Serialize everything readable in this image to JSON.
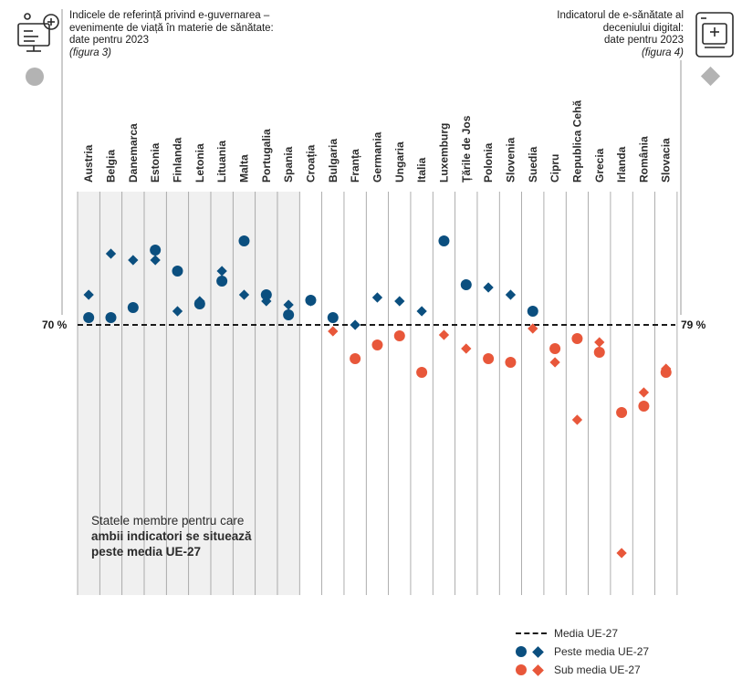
{
  "header_left": {
    "line1": "Indicele de referință privind e-guvernarea –",
    "line2": "evenimente de viață în materie de sănătate:",
    "line3": "date pentru 2023",
    "ref": "(figura 3)",
    "icon": "computer-health-icon"
  },
  "header_right": {
    "line1": "Indicatorul de e-sănătate al",
    "line2": "deceniului digital:",
    "line3": "date pentru 2023",
    "ref": "(figura 4)",
    "icon": "tablet-health-icon"
  },
  "note": {
    "line1": "Statele membre pentru care",
    "bold1": "ambii indicatori se situează",
    "bold2": "peste media UE-27"
  },
  "legend": {
    "mean": "Media UE-27",
    "above": "Peste media UE-27",
    "below": "Sub media UE-27"
  },
  "colors": {
    "above": "#0b4f7f",
    "below": "#e8573a",
    "below_dark": "#d94424",
    "shade": "#f0f0f0",
    "grey_marker": "#b3b3b3",
    "grid": "#9a9a9a"
  },
  "chart_data": {
    "type": "scatter",
    "title": "",
    "eu_mean_left_label": "70 %",
    "eu_mean_right_label": "79 %",
    "scale_note": "relative position; 0 = media UE-27, positive = above, negative = below",
    "categories": [
      "Austria",
      "Belgia",
      "Danemarca",
      "Estonia",
      "Finlanda",
      "Letonia",
      "Lituania",
      "Malta",
      "Portugalia",
      "Spania",
      "Croația",
      "Bulgaria",
      "Franța",
      "Germania",
      "Ungaria",
      "Italia",
      "Luxemburg",
      "Țările de Jos",
      "Polonia",
      "Slovenia",
      "Suedia",
      "Cipru",
      "Republica Cehă",
      "Grecia",
      "Irlanda",
      "România",
      "Slovacia"
    ],
    "shaded_categories": 10,
    "series": [
      {
        "name": "Indicele de referință e-guvernare (cerc)",
        "marker": "circle",
        "values": [
          8,
          8,
          19,
          82,
          59,
          23,
          48,
          92,
          33,
          11,
          27,
          8,
          -37,
          -22,
          -12,
          -52,
          92,
          44,
          -37,
          -41,
          15,
          -26,
          -15,
          -30,
          -96,
          -89,
          -52
        ]
      },
      {
        "name": "Indicatorul de e-sănătate (romb)",
        "marker": "diamond",
        "values": [
          33,
          78,
          71,
          71,
          15,
          26,
          59,
          33,
          26,
          22,
          26,
          -7,
          0,
          30,
          26,
          15,
          -11,
          -26,
          41,
          33,
          -4,
          -41,
          -104,
          -19,
          -250,
          -74,
          -48
        ]
      }
    ]
  }
}
